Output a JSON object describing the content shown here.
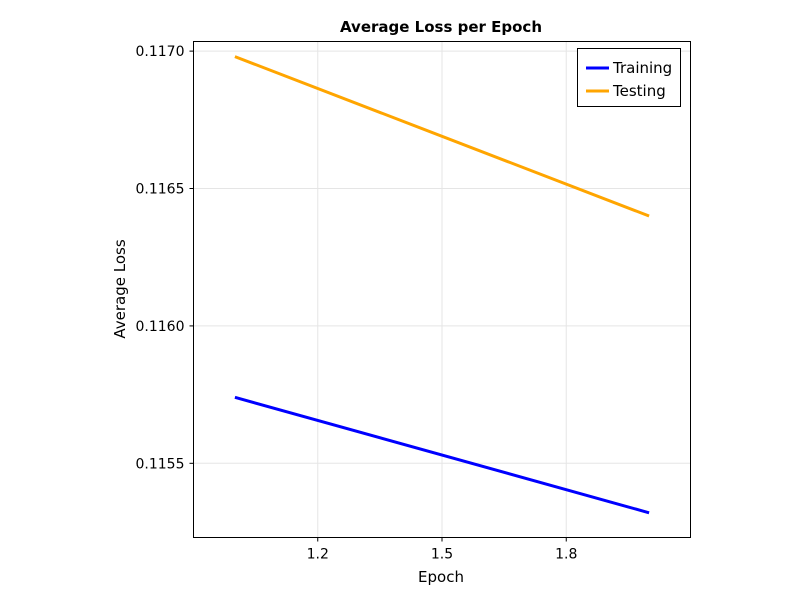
{
  "chart_data": {
    "type": "line",
    "title": "Average Loss per Epoch",
    "xlabel": "Epoch",
    "ylabel": "Average Loss",
    "x": [
      1,
      2
    ],
    "xlim": [
      0.9,
      2.1
    ],
    "ylim": [
      0.11523,
      0.117035
    ],
    "xticks": [
      1.2,
      1.5,
      1.8
    ],
    "xtick_labels": [
      "1.2",
      "1.5",
      "1.8"
    ],
    "yticks": [
      0.1155,
      0.116,
      0.1165,
      0.117
    ],
    "ytick_labels": [
      "0.1155",
      "0.1160",
      "0.1165",
      "0.1170"
    ],
    "grid": true,
    "legend": "top-right",
    "series": [
      {
        "name": "Training",
        "values": [
          0.11574,
          0.11532
        ],
        "color": "#0000ff"
      },
      {
        "name": "Testing",
        "values": [
          0.11698,
          0.1164
        ],
        "color": "#ffa500"
      }
    ]
  }
}
